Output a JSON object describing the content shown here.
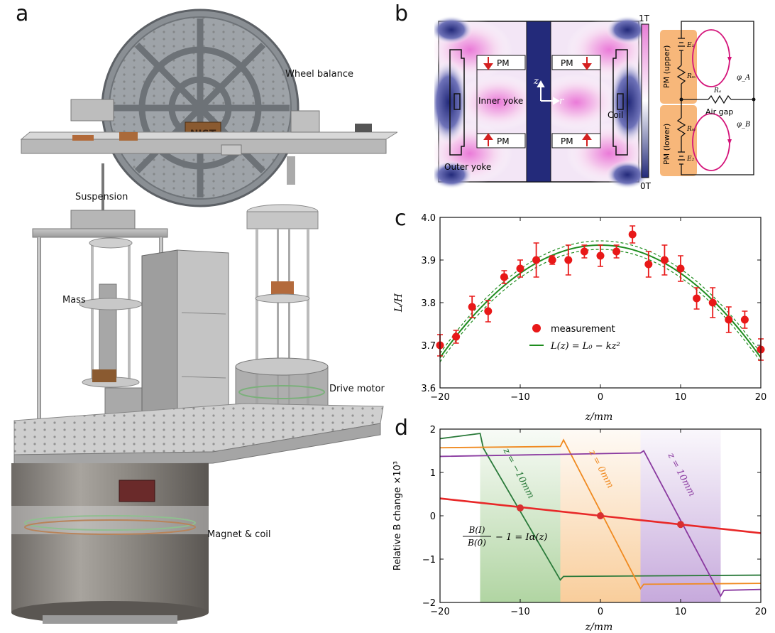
{
  "panels": {
    "a": {
      "letter": "a",
      "labels": {
        "wheel": "Wheel balance",
        "suspension": "Suspension",
        "mass": "Mass",
        "drive": "Drive motor",
        "magnet": "Magnet & coil"
      },
      "plaque": "NIST"
    },
    "b": {
      "letter": "b",
      "colorbar_top": "1T",
      "colorbar_bottom": "0T",
      "labels": {
        "pm": "PM",
        "inner_yoke": "Inner yoke",
        "outer_yoke": "Outer yoke",
        "coil": "Coil",
        "z_axis": "z",
        "r_axis": "r",
        "pm_upper": "PM (upper)",
        "pm_lower": "PM (lower)",
        "air_gap": "Air gap",
        "e1": "E₁",
        "e2": "E₂",
        "rm": "Rₘ",
        "ra": "Rₐ",
        "phi_a": "φ_A",
        "phi_b": "φ_B"
      },
      "colors": {
        "field_high": "#e880d8",
        "field_low": "#242a7c",
        "circuit_loop": "#d4147a",
        "pm_box": "#f7b77a",
        "arrow": "#d42020"
      }
    },
    "c": {
      "letter": "c"
    },
    "d": {
      "letter": "d"
    }
  },
  "chart_data": [
    {
      "id": "c",
      "type": "scatter",
      "xlabel": "z/mm",
      "ylabel": "L/H",
      "xlim": [
        -20,
        20
      ],
      "ylim": [
        3.6,
        4.0
      ],
      "xticks": [
        -20,
        -10,
        0,
        10,
        20
      ],
      "yticks": [
        3.6,
        3.7,
        3.8,
        3.9,
        4.0
      ],
      "xtick_labels": [
        "−20",
        "−10",
        "0",
        "10",
        "20"
      ],
      "ytick_labels": [
        "3.6",
        "3.7",
        "3.8",
        "3.9",
        "4.0"
      ],
      "measurement": {
        "name": "measurement",
        "color": "#e81818",
        "x": [
          -20,
          -18,
          -16,
          -14,
          -12,
          -10,
          -8,
          -6,
          -4,
          -2,
          0,
          2,
          4,
          6,
          8,
          10,
          12,
          14,
          16,
          18,
          20
        ],
        "y": [
          3.7,
          3.72,
          3.79,
          3.78,
          3.86,
          3.88,
          3.9,
          3.9,
          3.9,
          3.92,
          3.91,
          3.92,
          3.96,
          3.89,
          3.9,
          3.88,
          3.81,
          3.8,
          3.76,
          3.76,
          3.69
        ],
        "err": [
          0.025,
          0.015,
          0.025,
          0.025,
          0.015,
          0.02,
          0.04,
          0.01,
          0.035,
          0.015,
          0.025,
          0.015,
          0.02,
          0.03,
          0.035,
          0.03,
          0.025,
          0.035,
          0.03,
          0.02,
          0.025
        ]
      },
      "fit": {
        "name": "L(z) = L₀ − kz²",
        "color": "#1e8c1e",
        "L0": 3.935,
        "k": 0.00066,
        "band": 0.01
      },
      "legend": "lower-center"
    },
    {
      "id": "d",
      "type": "line",
      "xlabel": "z/mm",
      "ylabel": "Relative B change ×10³",
      "xlim": [
        -20,
        20
      ],
      "ylim": [
        -2,
        2
      ],
      "xticks": [
        -20,
        -10,
        0,
        10,
        20
      ],
      "yticks": [
        -2,
        -1,
        0,
        1,
        2
      ],
      "xtick_labels": [
        "−20",
        "−10",
        "0",
        "10",
        "20"
      ],
      "ytick_labels": [
        "−2",
        "−1",
        "0",
        "1",
        "2"
      ],
      "bands": [
        {
          "x": [
            -15,
            -5
          ],
          "color": "#a8d098"
        },
        {
          "x": [
            -5,
            5
          ],
          "color": "#f8c890"
        },
        {
          "x": [
            5,
            15
          ],
          "color": "#c0a0d8"
        }
      ],
      "series": [
        {
          "name": "z = −10mm",
          "color": "#2a7a3a",
          "x": [
            -20,
            -15,
            -14.6,
            -5,
            -4.6,
            20
          ],
          "y": [
            1.78,
            1.9,
            1.56,
            -1.48,
            -1.4,
            -1.37
          ]
        },
        {
          "name": "z = 0mm",
          "color": "#f08a20",
          "x": [
            -20,
            -5,
            -4.6,
            5,
            5.4,
            20
          ],
          "y": [
            1.57,
            1.6,
            1.75,
            -1.68,
            -1.58,
            -1.56
          ]
        },
        {
          "name": "z = 10mm",
          "color": "#8a3aa0",
          "x": [
            -20,
            5,
            5.4,
            15,
            15.4,
            20
          ],
          "y": [
            1.37,
            1.45,
            1.5,
            -1.85,
            -1.72,
            -1.7
          ]
        },
        {
          "name": "B(I)/B(0) − 1 = Iα(z)",
          "color": "#e82828",
          "x": [
            -20,
            20
          ],
          "y": [
            0.4,
            -0.4
          ]
        }
      ],
      "markers": {
        "color": "#d83030",
        "x": [
          -10,
          0,
          10
        ],
        "y": [
          0.18,
          0.0,
          -0.2
        ]
      },
      "annotations": {
        "formula_num_left": "B(I)",
        "formula_den_left": "B(0)",
        "formula_rest": "− 1 = Iα(z)"
      }
    }
  ]
}
